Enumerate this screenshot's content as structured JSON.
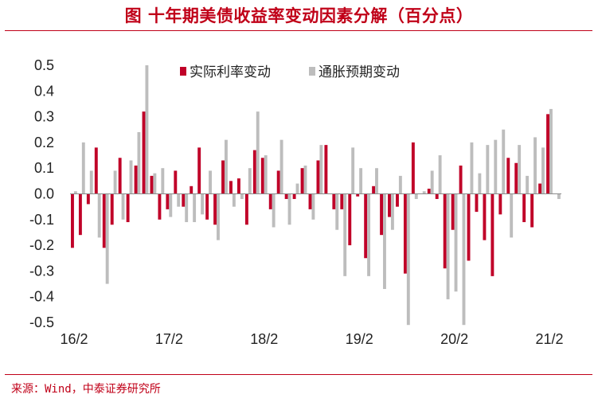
{
  "title": "图 十年期美债收益率变动因素分解（百分点）",
  "source": "来源：Wind，中泰证券研究所",
  "chart_data": {
    "type": "bar",
    "title": "图 十年期美债收益率变动因素分解（百分点）",
    "xlabel": "",
    "ylabel": "",
    "ylim": [
      -0.5,
      0.5
    ],
    "yticks": [
      "0.5",
      "0.4",
      "0.3",
      "0.2",
      "0.1",
      "0.0",
      "-0.1",
      "-0.2",
      "-0.3",
      "-0.4",
      "-0.5"
    ],
    "xticks": [
      "16/2",
      "17/2",
      "18/2",
      "19/2",
      "20/2",
      "21/2"
    ],
    "legend_position": "top",
    "grid": false,
    "categories": [
      "16/02",
      "16/03",
      "16/04",
      "16/05",
      "16/06",
      "16/07",
      "16/08",
      "16/09",
      "16/10",
      "16/11",
      "16/12",
      "17/01",
      "17/02",
      "17/03",
      "17/04",
      "17/05",
      "17/06",
      "17/07",
      "17/08",
      "17/09",
      "17/10",
      "17/11",
      "17/12",
      "18/01",
      "18/02",
      "18/03",
      "18/04",
      "18/05",
      "18/06",
      "18/07",
      "18/08",
      "18/09",
      "18/10",
      "18/11",
      "18/12",
      "19/01",
      "19/02",
      "19/03",
      "19/04",
      "19/05",
      "19/06",
      "19/07",
      "19/08",
      "19/09",
      "19/10",
      "19/11",
      "19/12",
      "20/01",
      "20/02",
      "20/03",
      "20/04",
      "20/05",
      "20/06",
      "20/07",
      "20/08",
      "20/09",
      "20/10",
      "20/11",
      "20/12",
      "21/01",
      "21/02",
      "21/03"
    ],
    "series": [
      {
        "name": "实际利率变动",
        "color": "#c00028",
        "values": [
          -0.21,
          -0.16,
          -0.04,
          0.18,
          -0.21,
          -0.12,
          0.14,
          -0.11,
          0.11,
          0.32,
          0.07,
          -0.1,
          -0.06,
          0.09,
          -0.05,
          0.03,
          0.18,
          -0.1,
          -0.12,
          0.13,
          0.05,
          0.06,
          -0.12,
          0.17,
          0.14,
          -0.06,
          0.09,
          -0.02,
          -0.02,
          0.1,
          -0.06,
          0.13,
          0.19,
          -0.06,
          -0.06,
          -0.2,
          -0.01,
          -0.25,
          0.03,
          -0.16,
          -0.09,
          -0.05,
          -0.31,
          0.2,
          0.0,
          0.02,
          -0.02,
          -0.29,
          -0.14,
          0.11,
          -0.26,
          -0.07,
          -0.18,
          -0.32,
          -0.08,
          0.14,
          0.12,
          -0.11,
          -0.13,
          0.04,
          0.31,
          0.0
        ]
      },
      {
        "name": "通胀预期变动",
        "color": "#bdbdbd",
        "values": [
          0.01,
          0.2,
          0.09,
          -0.17,
          -0.35,
          0.09,
          -0.1,
          0.13,
          0.24,
          0.5,
          0.08,
          0.1,
          -0.09,
          -0.05,
          -0.11,
          -0.11,
          -0.08,
          0.09,
          -0.18,
          0.21,
          -0.05,
          -0.02,
          0.1,
          0.32,
          0.15,
          -0.13,
          0.21,
          -0.12,
          0.04,
          0.11,
          -0.1,
          0.19,
          0.0,
          -0.14,
          -0.32,
          0.18,
          0.1,
          -0.32,
          0.1,
          -0.37,
          -0.14,
          0.07,
          -0.51,
          -0.02,
          0.01,
          0.09,
          0.15,
          -0.41,
          -0.38,
          -0.51,
          0.2,
          0.08,
          0.19,
          0.21,
          0.25,
          -0.17,
          0.19,
          0.07,
          0.22,
          0.18,
          0.33,
          -0.02
        ]
      }
    ]
  }
}
